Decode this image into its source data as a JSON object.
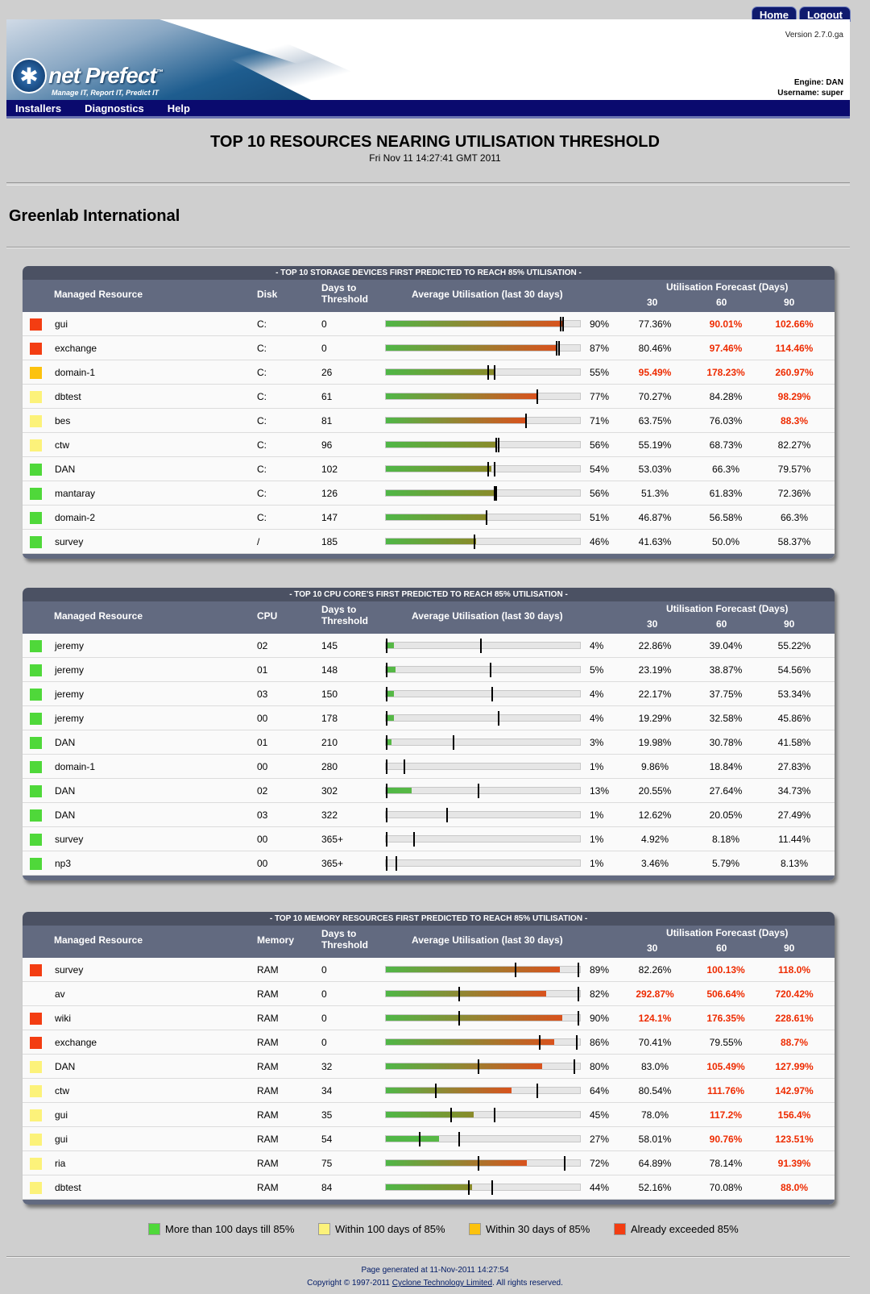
{
  "tabs": {
    "home": "Home",
    "logout": "Logout"
  },
  "brand": {
    "logo": "net Prefect",
    "tm": "™",
    "tagline": "Manage IT, Report IT, Predict IT"
  },
  "version": "Version 2.7.0.ga",
  "engine": "Engine: DAN",
  "username": "Username: super",
  "nav": [
    "Installers",
    "Diagnostics",
    "Help"
  ],
  "page": {
    "title": "TOP 10 RESOURCES NEARING UTILISATION THRESHOLD",
    "date": "Fri Nov 11 14:27:41 GMT 2011",
    "company": "Greenlab International"
  },
  "headers": {
    "resource": "Managed Resource",
    "days1": "Days to",
    "days2": "Threshold",
    "avg": "Average Utilisation (last 30 days)",
    "forecast": "Utilisation Forecast (Days)",
    "f30": "30",
    "f60": "60",
    "f90": "90"
  },
  "colors": {
    "green": "#4fd83a",
    "yellow": "#fcf27a",
    "orange": "#fcc20e",
    "red": "#f33d12"
  },
  "sections": [
    {
      "title": "- TOP 10 STORAGE DEVICES FIRST PREDICTED TO REACH 85% UTILISATION -",
      "col2": "Disk",
      "rows": [
        {
          "status": "red",
          "name": "gui",
          "unit": "C:",
          "days": "0",
          "pct": "90%",
          "fill": 0.9,
          "marks": [
            0.89,
            0.9
          ],
          "f30": "77.36%",
          "f60": "90.01%",
          "f90": "102.66%",
          "hi": [
            false,
            true,
            true
          ]
        },
        {
          "status": "red",
          "name": "exchange",
          "unit": "C:",
          "days": "0",
          "pct": "87%",
          "fill": 0.87,
          "marks": [
            0.87,
            0.88
          ],
          "f30": "80.46%",
          "f60": "97.46%",
          "f90": "114.46%",
          "hi": [
            false,
            true,
            true
          ]
        },
        {
          "status": "orange",
          "name": "domain-1",
          "unit": "C:",
          "days": "26",
          "pct": "55%",
          "fill": 0.55,
          "marks": [
            0.52,
            0.55
          ],
          "f30": "95.49%",
          "f60": "178.23%",
          "f90": "260.97%",
          "hi": [
            true,
            true,
            true
          ]
        },
        {
          "status": "yellow",
          "name": "dbtest",
          "unit": "C:",
          "days": "61",
          "pct": "77%",
          "fill": 0.77,
          "marks": [
            0.77
          ],
          "f30": "70.27%",
          "f60": "84.28%",
          "f90": "98.29%",
          "hi": [
            false,
            false,
            true
          ]
        },
        {
          "status": "yellow",
          "name": "bes",
          "unit": "C:",
          "days": "81",
          "pct": "71%",
          "fill": 0.71,
          "marks": [
            0.71
          ],
          "f30": "63.75%",
          "f60": "76.03%",
          "f90": "88.3%",
          "hi": [
            false,
            false,
            true
          ]
        },
        {
          "status": "yellow",
          "name": "ctw",
          "unit": "C:",
          "days": "96",
          "pct": "56%",
          "fill": 0.56,
          "marks": [
            0.56,
            0.57
          ],
          "f30": "55.19%",
          "f60": "68.73%",
          "f90": "82.27%",
          "hi": [
            false,
            false,
            false
          ]
        },
        {
          "status": "green",
          "name": "DAN",
          "unit": "C:",
          "days": "102",
          "pct": "54%",
          "fill": 0.54,
          "marks": [
            0.52,
            0.55
          ],
          "f30": "53.03%",
          "f60": "66.3%",
          "f90": "79.57%",
          "hi": [
            false,
            false,
            false
          ]
        },
        {
          "status": "green",
          "name": "mantaray",
          "unit": "C:",
          "days": "126",
          "pct": "56%",
          "fill": 0.56,
          "marks": [
            0.55,
            0.56
          ],
          "f30": "51.3%",
          "f60": "61.83%",
          "f90": "72.36%",
          "hi": [
            false,
            false,
            false
          ]
        },
        {
          "status": "green",
          "name": "domain-2",
          "unit": "C:",
          "days": "147",
          "pct": "51%",
          "fill": 0.51,
          "marks": [
            0.51
          ],
          "f30": "46.87%",
          "f60": "56.58%",
          "f90": "66.3%",
          "hi": [
            false,
            false,
            false
          ]
        },
        {
          "status": "green",
          "name": "survey",
          "unit": "/",
          "days": "185",
          "pct": "46%",
          "fill": 0.46,
          "marks": [
            0.45
          ],
          "f30": "41.63%",
          "f60": "50.0%",
          "f90": "58.37%",
          "hi": [
            false,
            false,
            false
          ]
        }
      ]
    },
    {
      "title": "- TOP 10 CPU CORE'S FIRST PREDICTED TO REACH 85% UTILISATION -",
      "col2": "CPU",
      "rows": [
        {
          "status": "green",
          "name": "jeremy",
          "unit": "02",
          "days": "145",
          "pct": "4%",
          "fill": 0.04,
          "marks": [
            0.0,
            0.48
          ],
          "f30": "22.86%",
          "f60": "39.04%",
          "f90": "55.22%",
          "hi": [
            false,
            false,
            false
          ]
        },
        {
          "status": "green",
          "name": "jeremy",
          "unit": "01",
          "days": "148",
          "pct": "5%",
          "fill": 0.05,
          "marks": [
            0.0,
            0.53
          ],
          "f30": "23.19%",
          "f60": "38.87%",
          "f90": "54.56%",
          "hi": [
            false,
            false,
            false
          ]
        },
        {
          "status": "green",
          "name": "jeremy",
          "unit": "03",
          "days": "150",
          "pct": "4%",
          "fill": 0.04,
          "marks": [
            0.0,
            0.54
          ],
          "f30": "22.17%",
          "f60": "37.75%",
          "f90": "53.34%",
          "hi": [
            false,
            false,
            false
          ]
        },
        {
          "status": "green",
          "name": "jeremy",
          "unit": "00",
          "days": "178",
          "pct": "4%",
          "fill": 0.04,
          "marks": [
            0.0,
            0.57
          ],
          "f30": "19.29%",
          "f60": "32.58%",
          "f90": "45.86%",
          "hi": [
            false,
            false,
            false
          ]
        },
        {
          "status": "green",
          "name": "DAN",
          "unit": "01",
          "days": "210",
          "pct": "3%",
          "fill": 0.03,
          "marks": [
            0.0,
            0.34
          ],
          "f30": "19.98%",
          "f60": "30.78%",
          "f90": "41.58%",
          "hi": [
            false,
            false,
            false
          ]
        },
        {
          "status": "green",
          "name": "domain-1",
          "unit": "00",
          "days": "280",
          "pct": "1%",
          "fill": 0.01,
          "marks": [
            0.0,
            0.09
          ],
          "f30": "9.86%",
          "f60": "18.84%",
          "f90": "27.83%",
          "hi": [
            false,
            false,
            false
          ]
        },
        {
          "status": "green",
          "name": "DAN",
          "unit": "02",
          "days": "302",
          "pct": "13%",
          "fill": 0.13,
          "marks": [
            0.0,
            0.47
          ],
          "f30": "20.55%",
          "f60": "27.64%",
          "f90": "34.73%",
          "hi": [
            false,
            false,
            false
          ]
        },
        {
          "status": "green",
          "name": "DAN",
          "unit": "03",
          "days": "322",
          "pct": "1%",
          "fill": 0.01,
          "marks": [
            0.0,
            0.31
          ],
          "f30": "12.62%",
          "f60": "20.05%",
          "f90": "27.49%",
          "hi": [
            false,
            false,
            false
          ]
        },
        {
          "status": "green",
          "name": "survey",
          "unit": "00",
          "days": "365+",
          "pct": "1%",
          "fill": 0.01,
          "marks": [
            0.0,
            0.14
          ],
          "f30": "4.92%",
          "f60": "8.18%",
          "f90": "11.44%",
          "hi": [
            false,
            false,
            false
          ]
        },
        {
          "status": "green",
          "name": "np3",
          "unit": "00",
          "days": "365+",
          "pct": "1%",
          "fill": 0.01,
          "marks": [
            0.0,
            0.05
          ],
          "f30": "3.46%",
          "f60": "5.79%",
          "f90": "8.13%",
          "hi": [
            false,
            false,
            false
          ]
        }
      ]
    },
    {
      "title": "- TOP 10 MEMORY RESOURCES FIRST PREDICTED TO REACH 85% UTILISATION -",
      "col2": "Memory",
      "rows": [
        {
          "status": "red",
          "name": "survey",
          "unit": "RAM",
          "days": "0",
          "pct": "89%",
          "fill": 0.89,
          "marks": [
            0.66,
            0.98
          ],
          "f30": "82.26%",
          "f60": "100.13%",
          "f90": "118.0%",
          "hi": [
            false,
            true,
            true
          ]
        },
        {
          "status": "none",
          "name": "av",
          "unit": "RAM",
          "days": "0",
          "pct": "82%",
          "fill": 0.82,
          "marks": [
            0.37,
            0.98
          ],
          "f30": "292.87%",
          "f60": "506.64%",
          "f90": "720.42%",
          "hi": [
            true,
            true,
            true
          ]
        },
        {
          "status": "red",
          "name": "wiki",
          "unit": "RAM",
          "days": "0",
          "pct": "90%",
          "fill": 0.9,
          "marks": [
            0.37,
            0.98
          ],
          "f30": "124.1%",
          "f60": "176.35%",
          "f90": "228.61%",
          "hi": [
            true,
            true,
            true
          ]
        },
        {
          "status": "red",
          "name": "exchange",
          "unit": "RAM",
          "days": "0",
          "pct": "86%",
          "fill": 0.86,
          "marks": [
            0.78,
            0.97
          ],
          "f30": "70.41%",
          "f60": "79.55%",
          "f90": "88.7%",
          "hi": [
            false,
            false,
            true
          ]
        },
        {
          "status": "yellow",
          "name": "DAN",
          "unit": "RAM",
          "days": "32",
          "pct": "80%",
          "fill": 0.8,
          "marks": [
            0.47,
            0.96
          ],
          "f30": "83.0%",
          "f60": "105.49%",
          "f90": "127.99%",
          "hi": [
            false,
            true,
            true
          ]
        },
        {
          "status": "yellow",
          "name": "ctw",
          "unit": "RAM",
          "days": "34",
          "pct": "64%",
          "fill": 0.64,
          "marks": [
            0.25,
            0.77
          ],
          "f30": "80.54%",
          "f60": "111.76%",
          "f90": "142.97%",
          "hi": [
            false,
            true,
            true
          ]
        },
        {
          "status": "yellow",
          "name": "gui",
          "unit": "RAM",
          "days": "35",
          "pct": "45%",
          "fill": 0.45,
          "marks": [
            0.33,
            0.55
          ],
          "f30": "78.0%",
          "f60": "117.2%",
          "f90": "156.4%",
          "hi": [
            false,
            true,
            true
          ]
        },
        {
          "status": "yellow",
          "name": "gui",
          "unit": "RAM",
          "days": "54",
          "pct": "27%",
          "fill": 0.27,
          "marks": [
            0.17,
            0.37
          ],
          "f30": "58.01%",
          "f60": "90.76%",
          "f90": "123.51%",
          "hi": [
            false,
            true,
            true
          ]
        },
        {
          "status": "yellow",
          "name": "ria",
          "unit": "RAM",
          "days": "75",
          "pct": "72%",
          "fill": 0.72,
          "marks": [
            0.47,
            0.91
          ],
          "f30": "64.89%",
          "f60": "78.14%",
          "f90": "91.39%",
          "hi": [
            false,
            false,
            true
          ]
        },
        {
          "status": "yellow",
          "name": "dbtest",
          "unit": "RAM",
          "days": "84",
          "pct": "44%",
          "fill": 0.44,
          "marks": [
            0.42,
            0.54
          ],
          "f30": "52.16%",
          "f60": "70.08%",
          "f90": "88.0%",
          "hi": [
            false,
            false,
            true
          ]
        }
      ]
    }
  ],
  "legend": [
    {
      "color": "#4fd83a",
      "label": "More than 100 days till 85%"
    },
    {
      "color": "#fcf27a",
      "label": "Within 100 days of 85%"
    },
    {
      "color": "#fcc20e",
      "label": "Within 30 days of 85%"
    },
    {
      "color": "#f33d12",
      "label": "Already exceeded 85%"
    }
  ],
  "footer": {
    "generated": "Page generated at 11-Nov-2011 14:27:54",
    "copyright_pre": "Copyright © 1997-2011 ",
    "company_link": "Cyclone Technology Limited",
    "copyright_post": ". All rights reserved."
  }
}
